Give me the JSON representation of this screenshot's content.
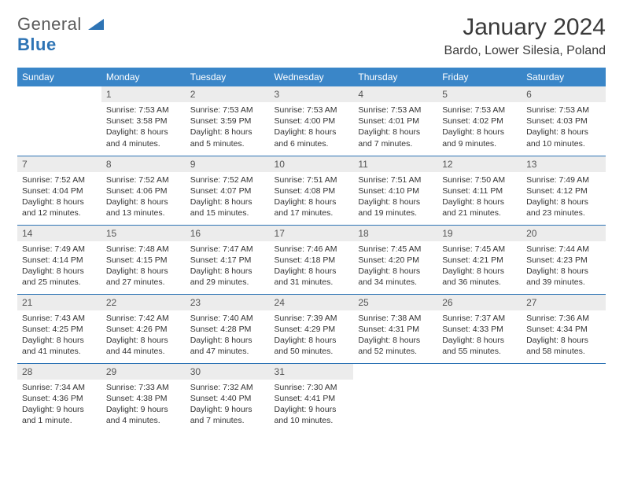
{
  "logo": {
    "word1": "General",
    "word2": "Blue"
  },
  "title": {
    "month": "January 2024",
    "location": "Bardo, Lower Silesia, Poland"
  },
  "colors": {
    "header_bg": "#3a86c8",
    "header_text": "#ffffff",
    "daynum_bg": "#ececec",
    "daynum_text": "#555555",
    "rule": "#2e74b5",
    "logo_gray": "#5a5a5a",
    "logo_blue": "#2e74b5",
    "body_text": "#333333"
  },
  "daynames": [
    "Sunday",
    "Monday",
    "Tuesday",
    "Wednesday",
    "Thursday",
    "Friday",
    "Saturday"
  ],
  "weeks": [
    [
      null,
      {
        "n": "1",
        "sunrise": "Sunrise: 7:53 AM",
        "sunset": "Sunset: 3:58 PM",
        "day1": "Daylight: 8 hours",
        "day2": "and 4 minutes."
      },
      {
        "n": "2",
        "sunrise": "Sunrise: 7:53 AM",
        "sunset": "Sunset: 3:59 PM",
        "day1": "Daylight: 8 hours",
        "day2": "and 5 minutes."
      },
      {
        "n": "3",
        "sunrise": "Sunrise: 7:53 AM",
        "sunset": "Sunset: 4:00 PM",
        "day1": "Daylight: 8 hours",
        "day2": "and 6 minutes."
      },
      {
        "n": "4",
        "sunrise": "Sunrise: 7:53 AM",
        "sunset": "Sunset: 4:01 PM",
        "day1": "Daylight: 8 hours",
        "day2": "and 7 minutes."
      },
      {
        "n": "5",
        "sunrise": "Sunrise: 7:53 AM",
        "sunset": "Sunset: 4:02 PM",
        "day1": "Daylight: 8 hours",
        "day2": "and 9 minutes."
      },
      {
        "n": "6",
        "sunrise": "Sunrise: 7:53 AM",
        "sunset": "Sunset: 4:03 PM",
        "day1": "Daylight: 8 hours",
        "day2": "and 10 minutes."
      }
    ],
    [
      {
        "n": "7",
        "sunrise": "Sunrise: 7:52 AM",
        "sunset": "Sunset: 4:04 PM",
        "day1": "Daylight: 8 hours",
        "day2": "and 12 minutes."
      },
      {
        "n": "8",
        "sunrise": "Sunrise: 7:52 AM",
        "sunset": "Sunset: 4:06 PM",
        "day1": "Daylight: 8 hours",
        "day2": "and 13 minutes."
      },
      {
        "n": "9",
        "sunrise": "Sunrise: 7:52 AM",
        "sunset": "Sunset: 4:07 PM",
        "day1": "Daylight: 8 hours",
        "day2": "and 15 minutes."
      },
      {
        "n": "10",
        "sunrise": "Sunrise: 7:51 AM",
        "sunset": "Sunset: 4:08 PM",
        "day1": "Daylight: 8 hours",
        "day2": "and 17 minutes."
      },
      {
        "n": "11",
        "sunrise": "Sunrise: 7:51 AM",
        "sunset": "Sunset: 4:10 PM",
        "day1": "Daylight: 8 hours",
        "day2": "and 19 minutes."
      },
      {
        "n": "12",
        "sunrise": "Sunrise: 7:50 AM",
        "sunset": "Sunset: 4:11 PM",
        "day1": "Daylight: 8 hours",
        "day2": "and 21 minutes."
      },
      {
        "n": "13",
        "sunrise": "Sunrise: 7:49 AM",
        "sunset": "Sunset: 4:12 PM",
        "day1": "Daylight: 8 hours",
        "day2": "and 23 minutes."
      }
    ],
    [
      {
        "n": "14",
        "sunrise": "Sunrise: 7:49 AM",
        "sunset": "Sunset: 4:14 PM",
        "day1": "Daylight: 8 hours",
        "day2": "and 25 minutes."
      },
      {
        "n": "15",
        "sunrise": "Sunrise: 7:48 AM",
        "sunset": "Sunset: 4:15 PM",
        "day1": "Daylight: 8 hours",
        "day2": "and 27 minutes."
      },
      {
        "n": "16",
        "sunrise": "Sunrise: 7:47 AM",
        "sunset": "Sunset: 4:17 PM",
        "day1": "Daylight: 8 hours",
        "day2": "and 29 minutes."
      },
      {
        "n": "17",
        "sunrise": "Sunrise: 7:46 AM",
        "sunset": "Sunset: 4:18 PM",
        "day1": "Daylight: 8 hours",
        "day2": "and 31 minutes."
      },
      {
        "n": "18",
        "sunrise": "Sunrise: 7:45 AM",
        "sunset": "Sunset: 4:20 PM",
        "day1": "Daylight: 8 hours",
        "day2": "and 34 minutes."
      },
      {
        "n": "19",
        "sunrise": "Sunrise: 7:45 AM",
        "sunset": "Sunset: 4:21 PM",
        "day1": "Daylight: 8 hours",
        "day2": "and 36 minutes."
      },
      {
        "n": "20",
        "sunrise": "Sunrise: 7:44 AM",
        "sunset": "Sunset: 4:23 PM",
        "day1": "Daylight: 8 hours",
        "day2": "and 39 minutes."
      }
    ],
    [
      {
        "n": "21",
        "sunrise": "Sunrise: 7:43 AM",
        "sunset": "Sunset: 4:25 PM",
        "day1": "Daylight: 8 hours",
        "day2": "and 41 minutes."
      },
      {
        "n": "22",
        "sunrise": "Sunrise: 7:42 AM",
        "sunset": "Sunset: 4:26 PM",
        "day1": "Daylight: 8 hours",
        "day2": "and 44 minutes."
      },
      {
        "n": "23",
        "sunrise": "Sunrise: 7:40 AM",
        "sunset": "Sunset: 4:28 PM",
        "day1": "Daylight: 8 hours",
        "day2": "and 47 minutes."
      },
      {
        "n": "24",
        "sunrise": "Sunrise: 7:39 AM",
        "sunset": "Sunset: 4:29 PM",
        "day1": "Daylight: 8 hours",
        "day2": "and 50 minutes."
      },
      {
        "n": "25",
        "sunrise": "Sunrise: 7:38 AM",
        "sunset": "Sunset: 4:31 PM",
        "day1": "Daylight: 8 hours",
        "day2": "and 52 minutes."
      },
      {
        "n": "26",
        "sunrise": "Sunrise: 7:37 AM",
        "sunset": "Sunset: 4:33 PM",
        "day1": "Daylight: 8 hours",
        "day2": "and 55 minutes."
      },
      {
        "n": "27",
        "sunrise": "Sunrise: 7:36 AM",
        "sunset": "Sunset: 4:34 PM",
        "day1": "Daylight: 8 hours",
        "day2": "and 58 minutes."
      }
    ],
    [
      {
        "n": "28",
        "sunrise": "Sunrise: 7:34 AM",
        "sunset": "Sunset: 4:36 PM",
        "day1": "Daylight: 9 hours",
        "day2": "and 1 minute."
      },
      {
        "n": "29",
        "sunrise": "Sunrise: 7:33 AM",
        "sunset": "Sunset: 4:38 PM",
        "day1": "Daylight: 9 hours",
        "day2": "and 4 minutes."
      },
      {
        "n": "30",
        "sunrise": "Sunrise: 7:32 AM",
        "sunset": "Sunset: 4:40 PM",
        "day1": "Daylight: 9 hours",
        "day2": "and 7 minutes."
      },
      {
        "n": "31",
        "sunrise": "Sunrise: 7:30 AM",
        "sunset": "Sunset: 4:41 PM",
        "day1": "Daylight: 9 hours",
        "day2": "and 10 minutes."
      },
      null,
      null,
      null
    ]
  ]
}
